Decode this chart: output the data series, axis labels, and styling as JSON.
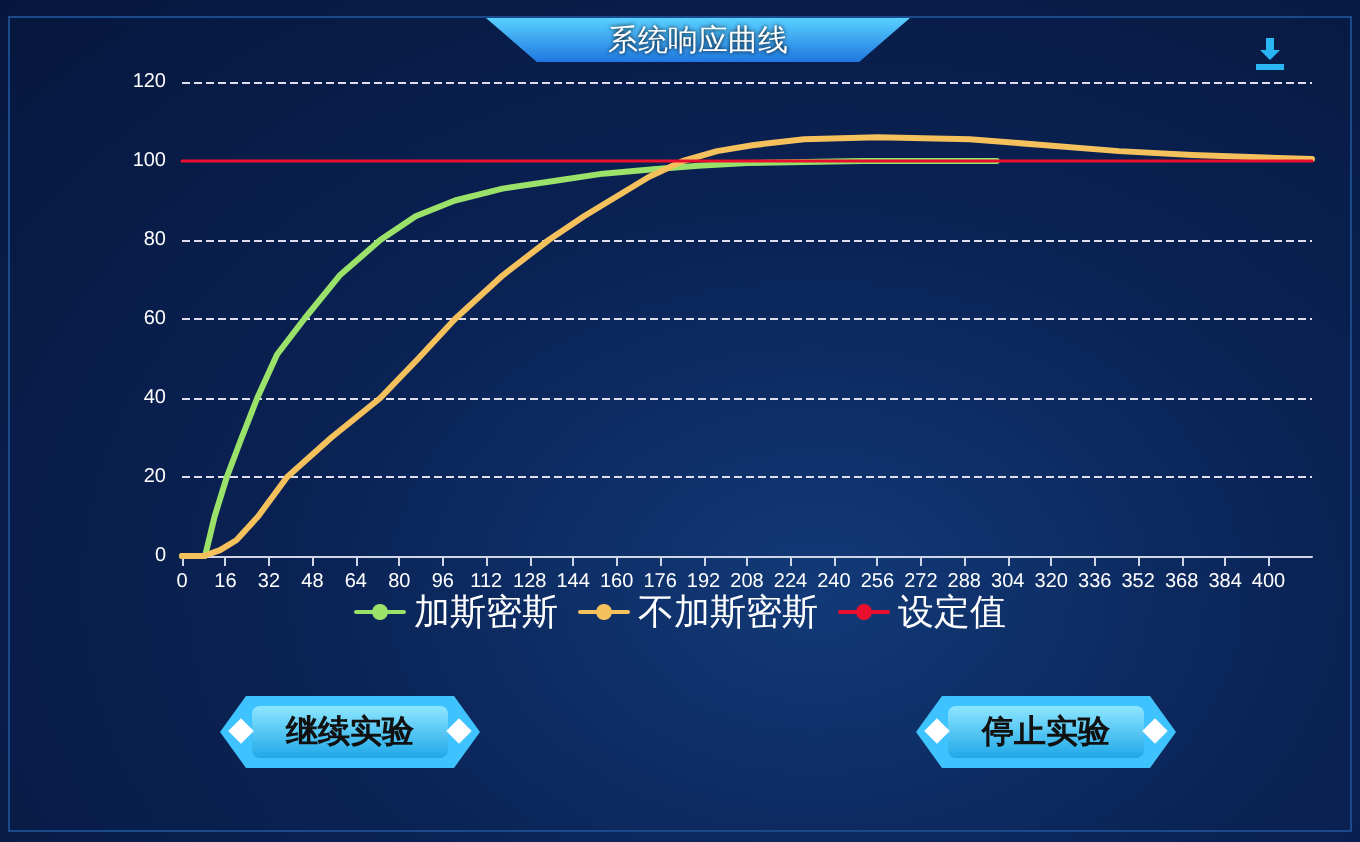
{
  "chart_data": {
    "type": "line",
    "title": "系统响应曲线",
    "xlim": [
      0,
      416
    ],
    "xticks": [
      0,
      16,
      32,
      48,
      64,
      80,
      96,
      112,
      128,
      144,
      160,
      176,
      192,
      208,
      224,
      240,
      256,
      272,
      288,
      304,
      320,
      336,
      352,
      368,
      384,
      400
    ],
    "ylim": [
      0,
      120
    ],
    "yticks": [
      0,
      20,
      40,
      60,
      80,
      100,
      120
    ],
    "series": [
      {
        "name": "加斯密斯",
        "color": "#9be26a",
        "x": [
          0,
          8.5,
          12,
          16.5,
          22,
          27.7,
          35,
          45,
          58,
          73,
          86,
          100.5,
          118,
          137.5,
          155,
          174.6,
          190,
          208,
          250,
          300
        ],
        "values": [
          0,
          0,
          10,
          20,
          30,
          40,
          51,
          60,
          71,
          80,
          86,
          90,
          93,
          95,
          96.8,
          98,
          98.8,
          99.5,
          100,
          100
        ]
      },
      {
        "name": "不加斯密斯",
        "color": "#f5c15c",
        "x": [
          0,
          8,
          14,
          20,
          28,
          38.7,
          55,
          73,
          87,
          100.5,
          118,
          135,
          148,
          160,
          172,
          184.4,
          197,
          210,
          229,
          256,
          290,
          318,
          345,
          372,
          416
        ],
        "values": [
          0,
          0,
          1.5,
          4,
          10,
          20,
          30,
          40,
          50,
          60,
          71,
          80,
          86,
          91,
          96,
          100,
          102.5,
          104,
          105.5,
          106,
          105.5,
          104,
          102.5,
          101.5,
          100.5
        ]
      },
      {
        "name": "设定值",
        "color": "#e8102e",
        "x": [
          0,
          416
        ],
        "values": [
          100,
          100
        ]
      }
    ],
    "grid": "y",
    "legend": "bottom",
    "marker": "none",
    "line_style": "solid",
    "annotations": [
      "继续实验",
      "停止实验"
    ]
  }
}
